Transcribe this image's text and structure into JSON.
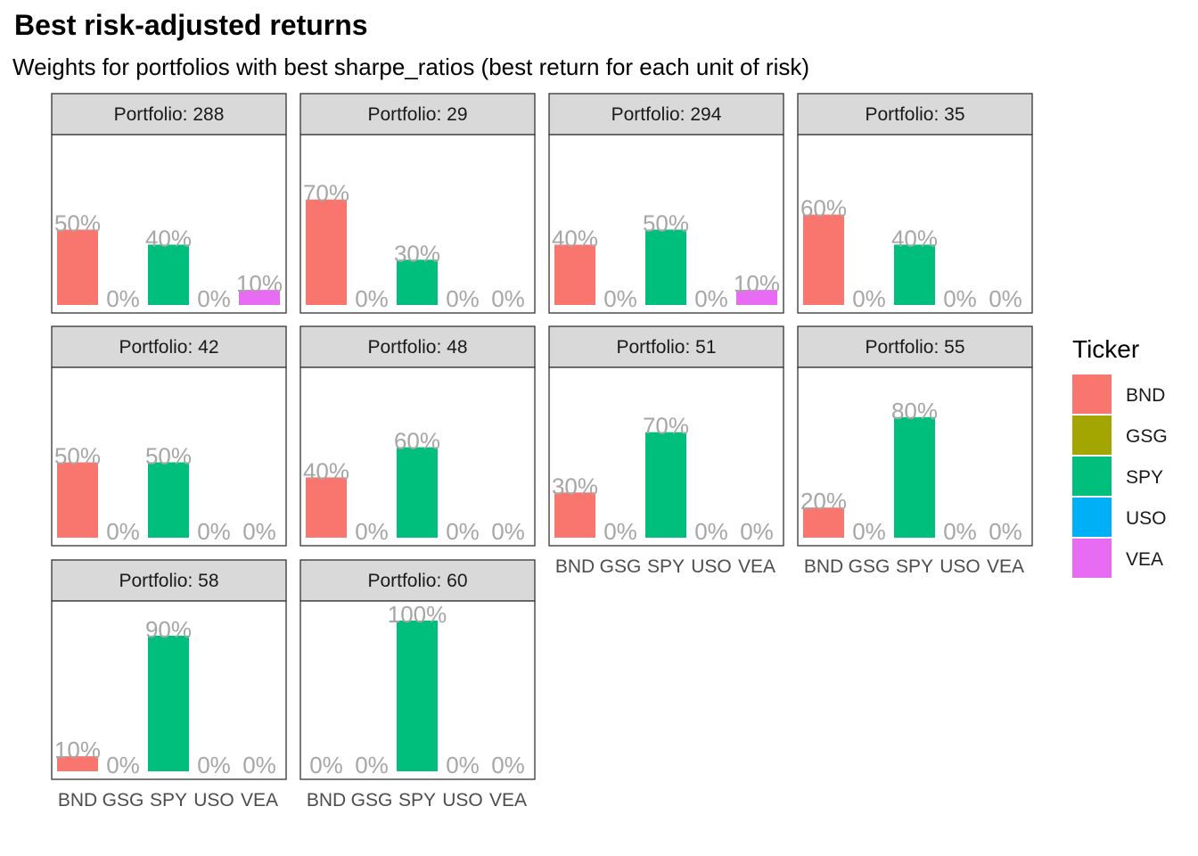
{
  "title": "Best risk-adjusted returns",
  "subtitle": "Weights for portfolios with best sharpe_ratios (best return for each unit of risk)",
  "colors": {
    "BND": "#F8766D",
    "GSG": "#A3A500",
    "SPY": "#00BF7D",
    "USO": "#00B0F6",
    "VEA": "#E76BF3",
    "strip_bg": "#D9D9D9",
    "panel_border": "#333333",
    "label_gray": "#A6A6A6"
  },
  "chart_data": {
    "type": "bar",
    "facet_prefix": "Portfolio: ",
    "categories": [
      "BND",
      "GSG",
      "SPY",
      "USO",
      "VEA"
    ],
    "ylim": [
      0,
      1.05
    ],
    "legend": {
      "title": "Ticker",
      "position": "right",
      "entries": [
        "BND",
        "GSG",
        "SPY",
        "USO",
        "VEA"
      ]
    },
    "panels": [
      {
        "portfolio": "288",
        "values": [
          0.5,
          0.0,
          0.4,
          0.0,
          0.1
        ],
        "labels": [
          "50%",
          "0%",
          "40%",
          "0%",
          "10%"
        ]
      },
      {
        "portfolio": "29",
        "values": [
          0.7,
          0.0,
          0.3,
          0.0,
          0.0
        ],
        "labels": [
          "70%",
          "0%",
          "30%",
          "0%",
          "0%"
        ]
      },
      {
        "portfolio": "294",
        "values": [
          0.4,
          0.0,
          0.5,
          0.0,
          0.1
        ],
        "labels": [
          "40%",
          "0%",
          "50%",
          "0%",
          "10%"
        ]
      },
      {
        "portfolio": "35",
        "values": [
          0.6,
          0.0,
          0.4,
          0.0,
          0.0
        ],
        "labels": [
          "60%",
          "0%",
          "40%",
          "0%",
          "0%"
        ]
      },
      {
        "portfolio": "42",
        "values": [
          0.5,
          0.0,
          0.5,
          0.0,
          0.0
        ],
        "labels": [
          "50%",
          "0%",
          "50%",
          "0%",
          "0%"
        ]
      },
      {
        "portfolio": "48",
        "values": [
          0.4,
          0.0,
          0.6,
          0.0,
          0.0
        ],
        "labels": [
          "40%",
          "0%",
          "60%",
          "0%",
          "0%"
        ]
      },
      {
        "portfolio": "51",
        "values": [
          0.3,
          0.0,
          0.7,
          0.0,
          0.0
        ],
        "labels": [
          "30%",
          "0%",
          "70%",
          "0%",
          "0%"
        ]
      },
      {
        "portfolio": "55",
        "values": [
          0.2,
          0.0,
          0.8,
          0.0,
          0.0
        ],
        "labels": [
          "20%",
          "0%",
          "80%",
          "0%",
          "0%"
        ]
      },
      {
        "portfolio": "58",
        "values": [
          0.1,
          0.0,
          0.9,
          0.0,
          0.0
        ],
        "labels": [
          "10%",
          "0%",
          "90%",
          "0%",
          "0%"
        ]
      },
      {
        "portfolio": "60",
        "values": [
          0.0,
          0.0,
          1.0,
          0.0,
          0.0
        ],
        "labels": [
          "0%",
          "0%",
          "100%",
          "0%",
          "0%"
        ]
      }
    ]
  }
}
